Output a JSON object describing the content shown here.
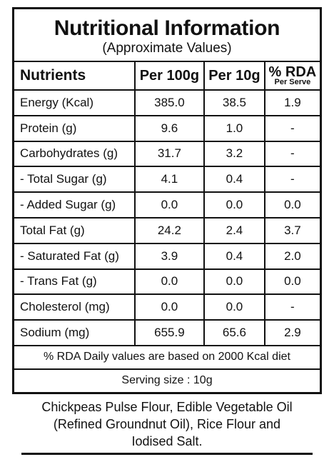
{
  "header": {
    "title": "Nutritional Information",
    "subtitle": "(Approximate Values)"
  },
  "table": {
    "columns": [
      "Nutrients",
      "Per 100g",
      "Per 10g",
      "% RDA"
    ],
    "rda_note": "Per Serve",
    "rows": [
      [
        "Energy (Kcal)",
        "385.0",
        "38.5",
        "1.9"
      ],
      [
        "Protein (g)",
        "9.6",
        "1.0",
        "-"
      ],
      [
        "Carbohydrates (g)",
        "31.7",
        "3.2",
        "-"
      ],
      [
        "- Total Sugar (g)",
        "4.1",
        "0.4",
        "-"
      ],
      [
        "- Added Sugar (g)",
        "0.0",
        "0.0",
        "0.0"
      ],
      [
        "Total Fat (g)",
        "24.2",
        "2.4",
        "3.7"
      ],
      [
        "- Saturated Fat (g)",
        "3.9",
        "0.4",
        "2.0"
      ],
      [
        "- Trans Fat (g)",
        "0.0",
        "0.0",
        "0.0"
      ],
      [
        "Cholesterol (mg)",
        "0.0",
        "0.0",
        "-"
      ],
      [
        "Sodium (mg)",
        "655.9",
        "65.6",
        "2.9"
      ]
    ],
    "footnote": "% RDA Daily values are based on 2000 Kcal diet",
    "serving": "Serving size : 10g"
  },
  "ingredients": [
    "Chickpeas Pulse Flour, Edible Vegetable Oil",
    "(Refined Groundnut Oil), Rice Flour and",
    "Iodised Salt."
  ]
}
